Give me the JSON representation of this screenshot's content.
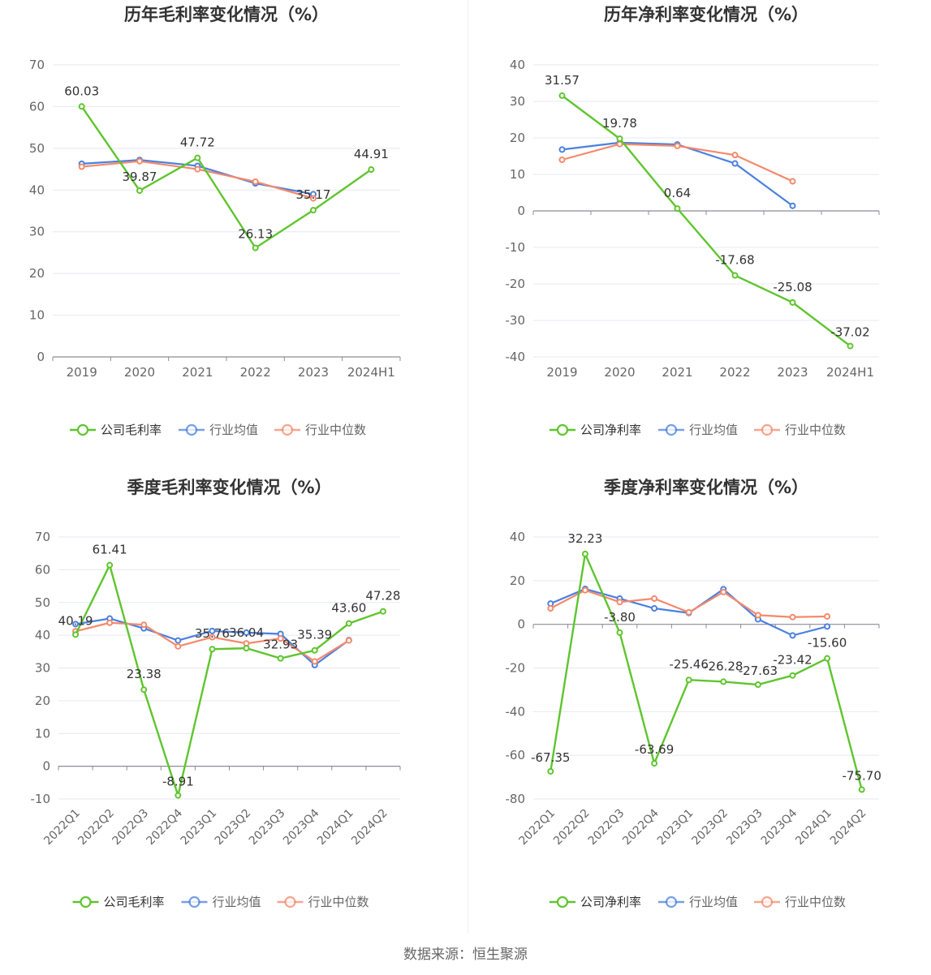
{
  "source_label": "数据来源：恒生聚源",
  "colors": {
    "company": "#5fc52e",
    "industry_avg": "#4a80e0",
    "industry_median": "#f4896b",
    "grid": "#e6e8f0",
    "axis": "#8c8c99",
    "tick_text": "#666666",
    "title": "#333333"
  },
  "chart_data": [
    {
      "type": "line",
      "title": "历年毛利率变化情况（%）",
      "categories": [
        "2019",
        "2020",
        "2021",
        "2022",
        "2023",
        "2024H1"
      ],
      "ylim": [
        0,
        70
      ],
      "yticks": [
        0,
        10,
        20,
        30,
        40,
        50,
        60,
        70
      ],
      "legend_position": "bottom",
      "grid": true,
      "series": [
        {
          "name": "公司毛利率",
          "role": "company",
          "values": [
            60.03,
            39.87,
            47.72,
            26.13,
            35.17,
            44.91
          ],
          "labels": [
            "60.03",
            "39.87",
            "47.72",
            "26.13",
            "35.17",
            "44.91"
          ]
        },
        {
          "name": "行业均值",
          "role": "industry_avg",
          "values": [
            46.3,
            47.2,
            45.8,
            41.6,
            39.0,
            null
          ]
        },
        {
          "name": "行业中位数",
          "role": "industry_median",
          "values": [
            45.6,
            46.9,
            45.0,
            42.0,
            38.0,
            null
          ]
        }
      ]
    },
    {
      "type": "line",
      "title": "历年净利率变化情况（%）",
      "categories": [
        "2019",
        "2020",
        "2021",
        "2022",
        "2023",
        "2024H1"
      ],
      "ylim": [
        -40,
        40
      ],
      "yticks": [
        -40,
        -30,
        -20,
        -10,
        0,
        10,
        20,
        30,
        40
      ],
      "legend_position": "bottom",
      "grid": true,
      "series": [
        {
          "name": "公司净利率",
          "role": "company",
          "values": [
            31.57,
            19.78,
            0.64,
            -17.68,
            -25.08,
            -37.02
          ],
          "labels": [
            "31.57",
            "19.78",
            "0.64",
            "-17.68",
            "-25.08",
            "-37.02"
          ]
        },
        {
          "name": "行业均值",
          "role": "industry_avg",
          "values": [
            16.8,
            18.7,
            18.2,
            13.0,
            1.4,
            null
          ]
        },
        {
          "name": "行业中位数",
          "role": "industry_median",
          "values": [
            14.0,
            18.3,
            17.8,
            15.3,
            8.1,
            null
          ]
        }
      ]
    },
    {
      "type": "line",
      "title": "季度毛利率变化情况（%）",
      "categories": [
        "2022Q1",
        "2022Q2",
        "2022Q3",
        "2022Q4",
        "2023Q1",
        "2023Q2",
        "2023Q3",
        "2023Q4",
        "2024Q1",
        "2024Q2"
      ],
      "ylim": [
        -10,
        70
      ],
      "yticks": [
        -10,
        0,
        10,
        20,
        30,
        40,
        50,
        60,
        70
      ],
      "legend_position": "bottom",
      "grid": true,
      "series": [
        {
          "name": "公司毛利率",
          "role": "company",
          "values": [
            40.19,
            61.41,
            23.38,
            -8.91,
            35.76,
            36.04,
            32.93,
            35.39,
            43.6,
            47.28
          ],
          "labels": [
            "40.19",
            "61.41",
            "23.38",
            "-8.91",
            "35.76",
            "36.04",
            "32.93",
            "35.39",
            "43.60",
            "47.28"
          ]
        },
        {
          "name": "行业均值",
          "role": "industry_avg",
          "values": [
            43.4,
            45.1,
            42.1,
            38.4,
            41.3,
            40.8,
            40.4,
            30.9,
            38.5,
            null
          ]
        },
        {
          "name": "行业中位数",
          "role": "industry_median",
          "values": [
            41.2,
            43.8,
            43.2,
            36.6,
            39.4,
            37.5,
            39.0,
            32.0,
            38.4,
            null
          ]
        }
      ]
    },
    {
      "type": "line",
      "title": "季度净利率变化情况（%）",
      "categories": [
        "2022Q1",
        "2022Q2",
        "2022Q3",
        "2022Q4",
        "2023Q1",
        "2023Q2",
        "2023Q3",
        "2023Q4",
        "2024Q1",
        "2024Q2"
      ],
      "ylim": [
        -80,
        40
      ],
      "yticks": [
        -80,
        -60,
        -40,
        -20,
        0,
        20,
        40
      ],
      "legend_position": "bottom",
      "grid": true,
      "series": [
        {
          "name": "公司净利率",
          "role": "company",
          "values": [
            -67.35,
            32.23,
            -3.8,
            -63.69,
            -25.46,
            -26.28,
            -27.63,
            -23.42,
            -15.6,
            -75.7
          ],
          "labels": [
            "-67.35",
            "32.23",
            "-3.80",
            "-63.69",
            "-25.46",
            "-26.28",
            "-27.63",
            "-23.42",
            "-15.60",
            "-75.70"
          ]
        },
        {
          "name": "行业均值",
          "role": "industry_avg",
          "values": [
            9.5,
            16.2,
            11.8,
            7.3,
            5.2,
            16.1,
            2.3,
            -5.1,
            -1.0,
            null
          ]
        },
        {
          "name": "行业中位数",
          "role": "industry_median",
          "values": [
            7.3,
            15.6,
            10.2,
            11.8,
            5.5,
            14.8,
            4.2,
            3.3,
            3.6,
            null
          ]
        }
      ]
    }
  ]
}
